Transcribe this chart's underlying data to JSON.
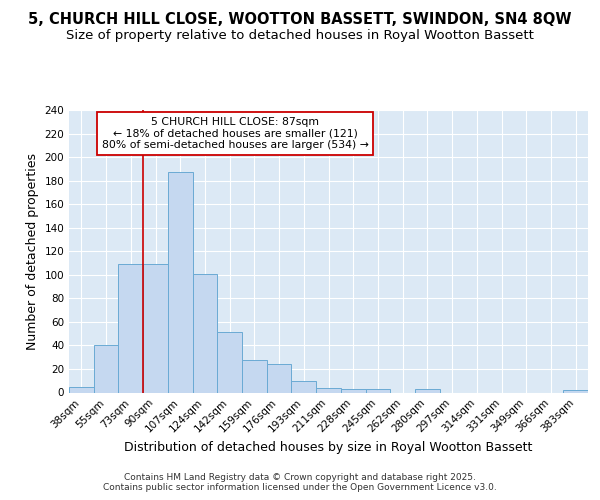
{
  "title": "5, CHURCH HILL CLOSE, WOOTTON BASSETT, SWINDON, SN4 8QW",
  "subtitle": "Size of property relative to detached houses in Royal Wootton Bassett",
  "xlabel": "Distribution of detached houses by size in Royal Wootton Bassett",
  "ylabel": "Number of detached properties",
  "categories": [
    "38sqm",
    "55sqm",
    "73sqm",
    "90sqm",
    "107sqm",
    "124sqm",
    "142sqm",
    "159sqm",
    "176sqm",
    "193sqm",
    "211sqm",
    "228sqm",
    "245sqm",
    "262sqm",
    "280sqm",
    "297sqm",
    "314sqm",
    "331sqm",
    "349sqm",
    "366sqm",
    "383sqm"
  ],
  "values": [
    5,
    40,
    109,
    109,
    187,
    101,
    51,
    28,
    24,
    10,
    4,
    3,
    3,
    0,
    3,
    0,
    0,
    0,
    0,
    0,
    2
  ],
  "bar_color": "#c5d8f0",
  "bar_edge_color": "#6aaad4",
  "vline_x_index": 3,
  "vline_color": "#cc0000",
  "ylim": [
    0,
    240
  ],
  "yticks": [
    0,
    20,
    40,
    60,
    80,
    100,
    120,
    140,
    160,
    180,
    200,
    220,
    240
  ],
  "annotation_text": "5 CHURCH HILL CLOSE: 87sqm\n← 18% of detached houses are smaller (121)\n80% of semi-detached houses are larger (534) →",
  "annotation_box_color": "#ffffff",
  "annotation_box_edge": "#cc0000",
  "footer": "Contains HM Land Registry data © Crown copyright and database right 2025.\nContains public sector information licensed under the Open Government Licence v3.0.",
  "bg_color": "#ffffff",
  "plot_bg_color": "#dce9f5",
  "title_fontsize": 10.5,
  "subtitle_fontsize": 9.5,
  "tick_fontsize": 7.5,
  "label_fontsize": 9,
  "footer_fontsize": 6.5
}
